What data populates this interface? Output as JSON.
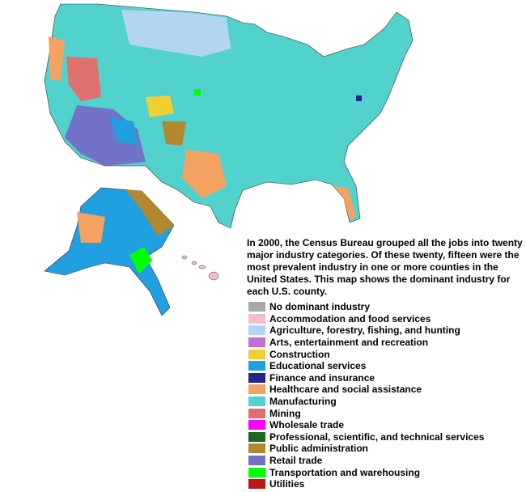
{
  "description": "In 2000, the Census Bureau grouped all the jobs into twenty major industry categories. Of these twenty, fifteen were the most prevalent industry in one or more counties in the United States. This map shows the dominant industry for each U.S. county.",
  "legend": {
    "items": [
      {
        "label": "No dominant industry",
        "color": "#a8a8a8"
      },
      {
        "label": "Accommodation and food services",
        "color": "#f2bccb"
      },
      {
        "label": "Agriculture, forestry, fishing, and hunting",
        "color": "#b2d6f2"
      },
      {
        "label": "Arts, entertainment and recreation",
        "color": "#c070d0"
      },
      {
        "label": "Construction",
        "color": "#f0d030"
      },
      {
        "label": "Educational services",
        "color": "#20a0e0"
      },
      {
        "label": "Finance and insurance",
        "color": "#24248c"
      },
      {
        "label": "Healthcare and social assistance",
        "color": "#f4a262"
      },
      {
        "label": "Manufacturing",
        "color": "#52d2cc"
      },
      {
        "label": "Mining",
        "color": "#e07070"
      },
      {
        "label": "Wholesale trade",
        "color": "#ff00ff"
      },
      {
        "label": "Professional, scientific, and technical services",
        "color": "#186820"
      },
      {
        "label": "Public administration",
        "color": "#b08830"
      },
      {
        "label": "Retail trade",
        "color": "#7272c8"
      },
      {
        "label": "Transportation and warehousing",
        "color": "#00ff00"
      },
      {
        "label": "Utilities",
        "color": "#c01818"
      }
    ]
  }
}
